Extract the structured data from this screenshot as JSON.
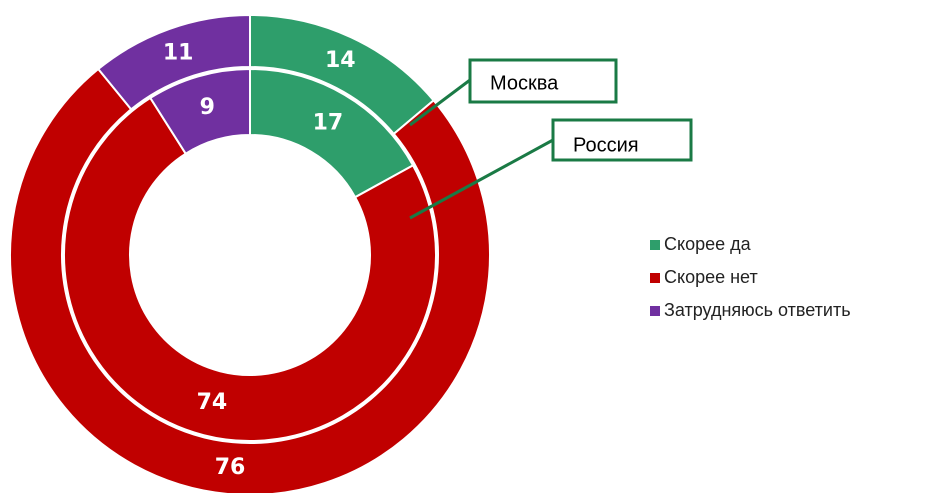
{
  "chart_data": {
    "type": "donut",
    "categories": [
      "Скорее да",
      "Скорее нет",
      "Затрудняюсь ответить"
    ],
    "colors": [
      "#2e9e6b",
      "#c00000",
      "#7030a0"
    ],
    "series": [
      {
        "name": "Москва",
        "values": [
          14,
          76,
          11
        ]
      },
      {
        "name": "Россия",
        "values": [
          17,
          74,
          9
        ]
      }
    ],
    "legend": "right"
  }
}
